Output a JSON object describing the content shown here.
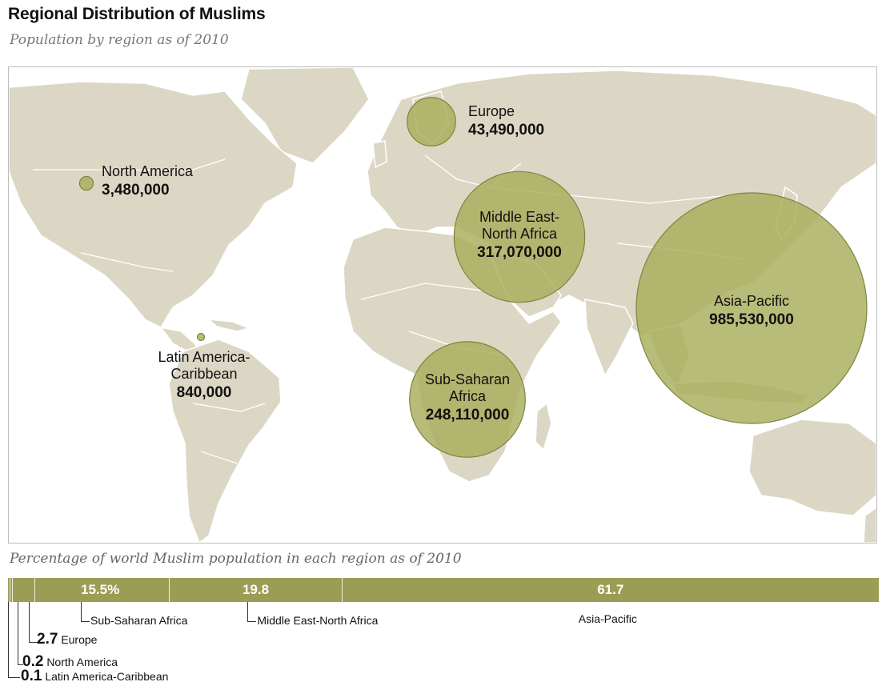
{
  "title": "Regional Distribution of Muslims",
  "subtitle": "Population by region as of 2010",
  "map": {
    "regions": [
      {
        "id": "north-america",
        "label_lines": [
          "North America"
        ],
        "value": 3480000,
        "value_label": "3,480,000",
        "color": "#a8ad5c"
      },
      {
        "id": "europe",
        "label_lines": [
          "Europe"
        ],
        "value": 43490000,
        "value_label": "43,490,000",
        "color": "#a8ad5c"
      },
      {
        "id": "middle-east-north-africa",
        "label_lines": [
          "Middle East-",
          "North Africa"
        ],
        "value": 317070000,
        "value_label": "317,070,000",
        "color": "#a8ad5c"
      },
      {
        "id": "asia-pacific",
        "label_lines": [
          "Asia-Pacific"
        ],
        "value": 985530000,
        "value_label": "985,530,000",
        "color": "#a8ad5c"
      },
      {
        "id": "latin-america-caribbean",
        "label_lines": [
          "Latin America-",
          "Caribbean"
        ],
        "value": 840000,
        "value_label": "840,000",
        "color": "#a8ad5c"
      },
      {
        "id": "sub-saharan-africa",
        "label_lines": [
          "Sub-Saharan",
          "Africa"
        ],
        "value": 248110000,
        "value_label": "248,110,000",
        "color": "#a8ad5c"
      }
    ],
    "land_color": "#dcd7c4",
    "border_color": "#ffffff"
  },
  "bar": {
    "caption": "Percentage of world Muslim population in each region as of 2010",
    "color": "#9c9d55",
    "segments": [
      {
        "region": "Latin America-Caribbean",
        "value": 0.1,
        "display": "0.1"
      },
      {
        "region": "North America",
        "value": 0.2,
        "display": "0.2"
      },
      {
        "region": "Europe",
        "value": 2.7,
        "display": "2.7"
      },
      {
        "region": "Sub-Saharan Africa",
        "value": 15.5,
        "display": "15.5%"
      },
      {
        "region": "Middle East-North Africa",
        "value": 19.8,
        "display": "19.8"
      },
      {
        "region": "Asia-Pacific",
        "value": 61.7,
        "display": "61.7"
      }
    ]
  }
}
